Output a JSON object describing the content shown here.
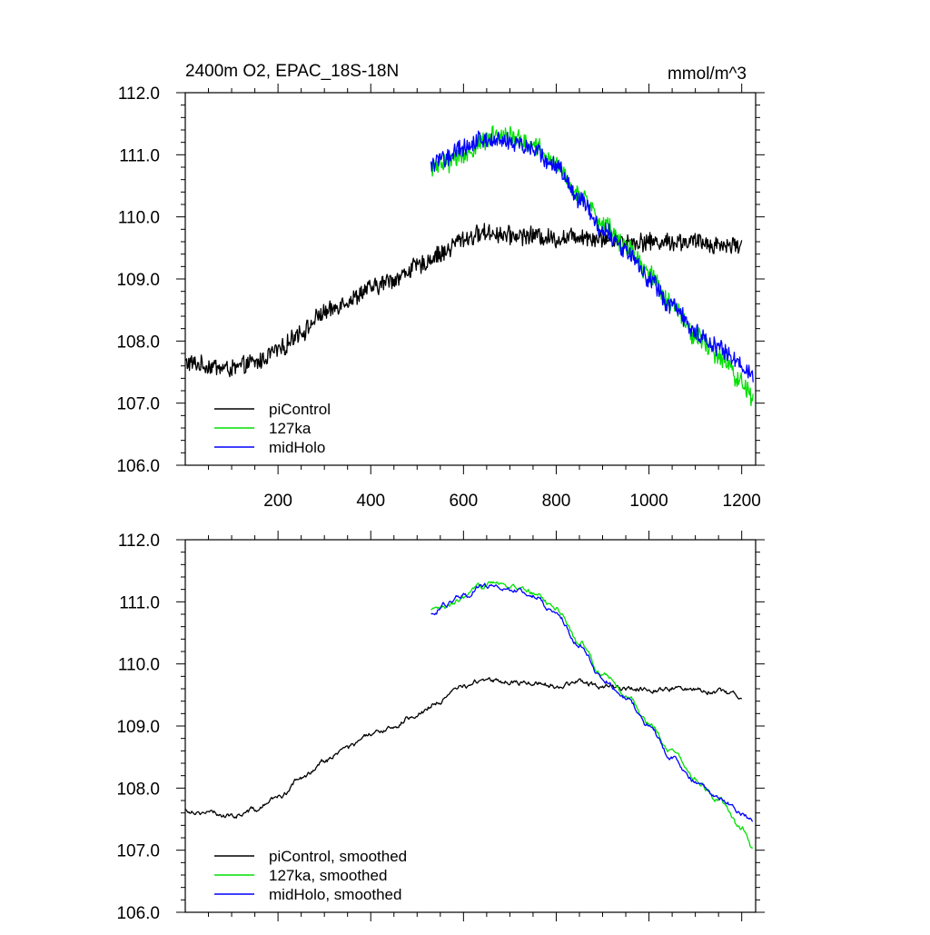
{
  "colors": {
    "piControl": "#000000",
    "127ka": "#00e000",
    "midHolo": "#0000ff"
  },
  "chart_data": [
    {
      "type": "line",
      "title": "2400m O2, EPAC_18S-18N",
      "units": "mmol/m^3",
      "xlim": [
        0,
        1230
      ],
      "ylim": [
        106.0,
        112.0
      ],
      "x_ticks": [
        200,
        400,
        600,
        800,
        1000,
        1200
      ],
      "x_tick_labels": [
        "200",
        "400",
        "600",
        "800",
        "1000",
        "1200"
      ],
      "y_ticks": [
        106,
        107,
        108,
        109,
        110,
        111,
        112
      ],
      "y_tick_labels": [
        "106.0",
        "107.0",
        "108.0",
        "109.0",
        "110.0",
        "111.0",
        "112.0"
      ],
      "legend_position": "bottom-left",
      "series": [
        {
          "name": "piControl",
          "color": "#000000",
          "noise": 0.13,
          "x": [
            0,
            50,
            100,
            150,
            200,
            250,
            300,
            350,
            400,
            450,
            500,
            550,
            600,
            650,
            700,
            750,
            800,
            850,
            900,
            950,
            1000,
            1050,
            1100,
            1150,
            1200
          ],
          "y": [
            107.65,
            107.6,
            107.55,
            107.65,
            107.85,
            108.15,
            108.45,
            108.65,
            108.85,
            109.0,
            109.2,
            109.4,
            109.65,
            109.75,
            109.7,
            109.7,
            109.65,
            109.7,
            109.65,
            109.6,
            109.6,
            109.6,
            109.6,
            109.55,
            109.55
          ]
        },
        {
          "name": "127ka",
          "color": "#00e000",
          "noise": 0.14,
          "x": [
            530,
            560,
            600,
            640,
            670,
            700,
            750,
            800,
            850,
            900,
            950,
            1000,
            1050,
            1100,
            1150,
            1200,
            1225
          ],
          "y": [
            110.8,
            110.85,
            111.0,
            111.2,
            111.35,
            111.3,
            111.15,
            110.85,
            110.35,
            109.9,
            109.55,
            109.1,
            108.6,
            108.1,
            107.75,
            107.35,
            107.05
          ]
        },
        {
          "name": "midHolo",
          "color": "#0000ff",
          "noise": 0.13,
          "x": [
            530,
            560,
            600,
            640,
            670,
            700,
            750,
            800,
            850,
            900,
            950,
            1000,
            1050,
            1100,
            1150,
            1200,
            1225
          ],
          "y": [
            110.85,
            110.95,
            111.1,
            111.25,
            111.25,
            111.2,
            111.1,
            110.8,
            110.3,
            109.8,
            109.45,
            109.0,
            108.55,
            108.15,
            107.9,
            107.6,
            107.45
          ]
        }
      ]
    },
    {
      "type": "line",
      "xlim": [
        0,
        1230
      ],
      "ylim": [
        106.0,
        112.0
      ],
      "x_ticks": [
        200,
        400,
        600,
        800,
        1000,
        1200
      ],
      "y_ticks": [
        106,
        107,
        108,
        109,
        110,
        111,
        112
      ],
      "y_tick_labels": [
        "106.0",
        "107.0",
        "108.0",
        "109.0",
        "110.0",
        "111.0",
        "112.0"
      ],
      "legend_position": "bottom-left",
      "series": [
        {
          "name": "piControl, smoothed",
          "color": "#000000",
          "noise": 0.04,
          "x": [
            0,
            50,
            100,
            150,
            200,
            250,
            300,
            350,
            400,
            450,
            500,
            550,
            600,
            650,
            700,
            750,
            800,
            850,
            900,
            950,
            1000,
            1050,
            1100,
            1150,
            1200
          ],
          "y": [
            107.65,
            107.6,
            107.55,
            107.65,
            107.85,
            108.15,
            108.45,
            108.65,
            108.85,
            109.0,
            109.2,
            109.4,
            109.65,
            109.75,
            109.7,
            109.7,
            109.65,
            109.7,
            109.65,
            109.6,
            109.6,
            109.6,
            109.6,
            109.55,
            109.5
          ]
        },
        {
          "name": "127ka, smoothed",
          "color": "#00e000",
          "noise": 0.04,
          "x": [
            530,
            560,
            600,
            640,
            660,
            700,
            750,
            800,
            850,
            900,
            950,
            1000,
            1050,
            1100,
            1150,
            1200,
            1225
          ],
          "y": [
            110.85,
            110.9,
            111.05,
            111.25,
            111.35,
            111.25,
            111.15,
            110.9,
            110.35,
            109.85,
            109.5,
            109.05,
            108.6,
            108.15,
            107.8,
            107.35,
            107.0
          ]
        },
        {
          "name": "midHolo, smoothed",
          "color": "#0000ff",
          "noise": 0.04,
          "x": [
            530,
            560,
            600,
            640,
            660,
            700,
            750,
            800,
            850,
            900,
            950,
            1000,
            1050,
            1100,
            1150,
            1200,
            1225
          ],
          "y": [
            110.8,
            110.95,
            111.1,
            111.25,
            111.25,
            111.2,
            111.1,
            110.8,
            110.3,
            109.75,
            109.45,
            109.0,
            108.5,
            108.1,
            107.85,
            107.6,
            107.5
          ]
        }
      ]
    }
  ]
}
